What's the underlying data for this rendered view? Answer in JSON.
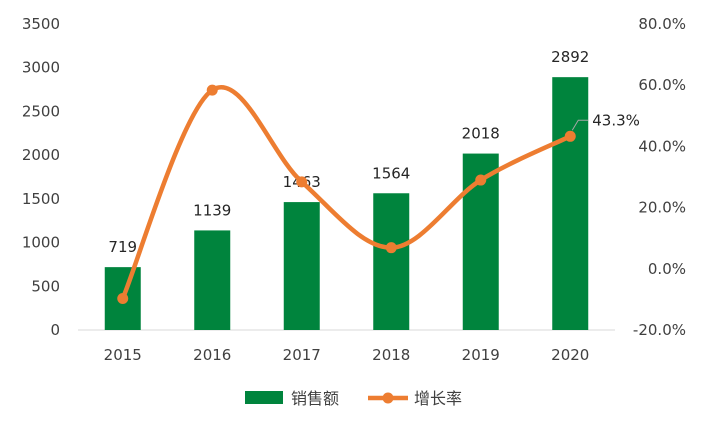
{
  "chart_data": {
    "type": "bar",
    "categories": [
      "2015",
      "2016",
      "2017",
      "2018",
      "2019",
      "2020"
    ],
    "series": [
      {
        "name": "销售额",
        "type": "bar",
        "axis": "left",
        "values": [
          719,
          1139,
          1463,
          1564,
          2018,
          2892
        ],
        "color": "#00843D"
      },
      {
        "name": "增长率",
        "type": "line",
        "axis": "right",
        "smooth": true,
        "values": [
          -9.7,
          58.4,
          28.4,
          6.9,
          29.0,
          43.3
        ],
        "color": "#ED7D31"
      }
    ],
    "bar_data_labels": [
      "719",
      "1139",
      "1463",
      "1564",
      "2018",
      "2892"
    ],
    "line_data_label": {
      "index": 5,
      "text": "43.3%"
    },
    "y_left": {
      "min": 0,
      "max": 3500,
      "ticks": [
        "0",
        "500",
        "1000",
        "1500",
        "2000",
        "2500",
        "3000",
        "3500"
      ]
    },
    "y_right": {
      "min": -20,
      "max": 80,
      "ticks": [
        "-20.0%",
        "0.0%",
        "20.0%",
        "40.0%",
        "60.0%",
        "80.0%"
      ]
    },
    "legend_position": "bottom",
    "grid": false
  }
}
